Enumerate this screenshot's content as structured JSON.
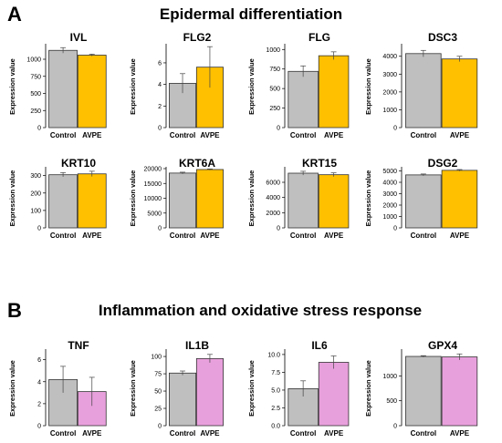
{
  "sections": [
    {
      "letter": "A",
      "title": "Epidermal differentiation"
    },
    {
      "letter": "B",
      "title": "Inflammation and oxidative stress response"
    }
  ],
  "colors": {
    "control": "#bfbfbf",
    "avpe_a": "#ffc000",
    "avpe_b": "#e8a0dc"
  },
  "chart_data": [
    {
      "type": "bar",
      "title": "IVL",
      "ylabel": "Expression value",
      "categories": [
        "Control",
        "AVPE"
      ],
      "values": [
        1130,
        1060
      ],
      "errors": [
        40,
        15
      ],
      "ylim": [
        0,
        1200
      ],
      "yticks": [
        0,
        250,
        500,
        750,
        1000
      ],
      "color": "avpe_a"
    },
    {
      "type": "bar",
      "title": "FLG2",
      "ylabel": "Expression value",
      "categories": [
        "Control",
        "AVPE"
      ],
      "values": [
        4.1,
        5.6
      ],
      "errors": [
        0.9,
        1.9
      ],
      "ylim": [
        0,
        7.6
      ],
      "yticks": [
        0,
        2,
        4,
        6
      ],
      "color": "avpe_a"
    },
    {
      "type": "bar",
      "title": "FLG",
      "ylabel": "Expression value",
      "categories": [
        "Control",
        "AVPE"
      ],
      "values": [
        720,
        920
      ],
      "errors": [
        70,
        50
      ],
      "ylim": [
        0,
        1050
      ],
      "yticks": [
        0,
        250,
        500,
        750,
        1000
      ],
      "color": "avpe_a"
    },
    {
      "type": "bar",
      "title": "DSC3",
      "ylabel": "Expression value",
      "categories": [
        "Control",
        "AVPE"
      ],
      "values": [
        4150,
        3850
      ],
      "errors": [
        180,
        150
      ],
      "ylim": [
        0,
        4600
      ],
      "yticks": [
        0,
        1000,
        2000,
        3000,
        4000
      ],
      "color": "avpe_a"
    },
    {
      "type": "bar",
      "title": "KRT10",
      "ylabel": "Expression value",
      "categories": [
        "Control",
        "AVPE"
      ],
      "values": [
        305,
        310
      ],
      "errors": [
        12,
        15
      ],
      "ylim": [
        0,
        340
      ],
      "yticks": [
        0,
        100,
        200,
        300
      ],
      "color": "avpe_a"
    },
    {
      "type": "bar",
      "title": "KRT6A",
      "ylabel": "Expression value",
      "categories": [
        "Control",
        "AVPE"
      ],
      "values": [
        18500,
        19700
      ],
      "errors": [
        300,
        200
      ],
      "ylim": [
        0,
        20000
      ],
      "yticks": [
        0,
        5000,
        10000,
        15000,
        20000
      ],
      "color": "avpe_a"
    },
    {
      "type": "bar",
      "title": "KRT15",
      "ylabel": "Expression value",
      "categories": [
        "Control",
        "AVPE"
      ],
      "values": [
        7200,
        7000
      ],
      "errors": [
        250,
        250
      ],
      "ylim": [
        0,
        7800
      ],
      "yticks": [
        0,
        2000,
        4000,
        6000
      ],
      "color": "avpe_a"
    },
    {
      "type": "bar",
      "title": "DSG2",
      "ylabel": "Expression value",
      "categories": [
        "Control",
        "AVPE"
      ],
      "values": [
        4650,
        5050
      ],
      "errors": [
        80,
        70
      ],
      "ylim": [
        0,
        5200
      ],
      "yticks": [
        0,
        1000,
        2000,
        3000,
        4000,
        5000
      ],
      "color": "avpe_a"
    },
    {
      "type": "bar",
      "title": "TNF",
      "ylabel": "Expression value",
      "categories": [
        "Control",
        "AVPE"
      ],
      "values": [
        4.2,
        3.1
      ],
      "errors": [
        1.2,
        1.3
      ],
      "ylim": [
        0,
        6.8
      ],
      "yticks": [
        0,
        2,
        4,
        6
      ],
      "color": "avpe_b"
    },
    {
      "type": "bar",
      "title": "IL1B",
      "ylabel": "Expression value",
      "categories": [
        "Control",
        "AVPE"
      ],
      "values": [
        76,
        97
      ],
      "errors": [
        3,
        6
      ],
      "ylim": [
        0,
        108
      ],
      "yticks": [
        0,
        25,
        50,
        75,
        100
      ],
      "color": "avpe_b"
    },
    {
      "type": "bar",
      "title": "IL6",
      "ylabel": "Expression value",
      "categories": [
        "Control",
        "AVPE"
      ],
      "values": [
        5.2,
        8.9
      ],
      "errors": [
        1.1,
        0.9
      ],
      "ylim": [
        0,
        10.5
      ],
      "yticks": [
        "0.0",
        "2.5",
        "5.0",
        "7.5",
        "10.0"
      ],
      "color": "avpe_b"
    },
    {
      "type": "bar",
      "title": "GPX4",
      "ylabel": "Expression value",
      "categories": [
        "Control",
        "AVPE"
      ],
      "values": [
        1390,
        1380
      ],
      "errors": [
        15,
        60
      ],
      "ylim": [
        0,
        1500
      ],
      "yticks": [
        0,
        500,
        1000
      ],
      "color": "avpe_b"
    }
  ]
}
